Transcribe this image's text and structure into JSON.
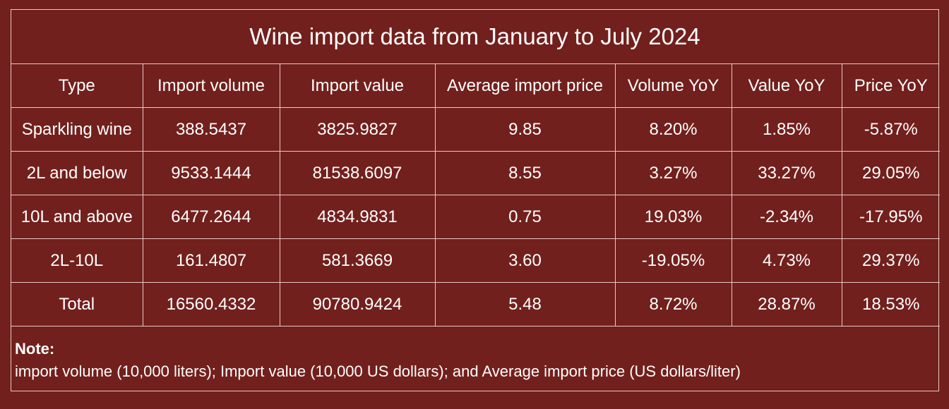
{
  "chart_data": {
    "type": "table",
    "title": "Wine import data from January to July 2024",
    "columns": [
      "Type",
      "Import volume",
      "Import value",
      "Average import price",
      "Volume YoY",
      "Value YoY",
      "Price YoY"
    ],
    "rows": [
      [
        "Sparkling wine",
        "388.5437",
        "3825.9827",
        "9.85",
        "8.20%",
        "1.85%",
        "-5.87%"
      ],
      [
        "2L and below",
        "9533.1444",
        "81538.6097",
        "8.55",
        "3.27%",
        "33.27%",
        "29.05%"
      ],
      [
        "10L and above",
        "6477.2644",
        "4834.9831",
        "0.75",
        "19.03%",
        "-2.34%",
        "-17.95%"
      ],
      [
        "2L-10L",
        "161.4807",
        "581.3669",
        "3.60",
        "-19.05%",
        "4.73%",
        "29.37%"
      ],
      [
        "Total",
        "16560.4332",
        "90780.9424",
        "5.48",
        "8.72%",
        "28.87%",
        "18.53%"
      ]
    ],
    "note_label": "Note:",
    "note_text": "import volume (10,000 liters); Import value (10,000 US dollars); and Average import price (US dollars/liter)"
  },
  "colors": {
    "background": "#72201d",
    "border": "#e9c9c4",
    "text": "#ffffff"
  }
}
